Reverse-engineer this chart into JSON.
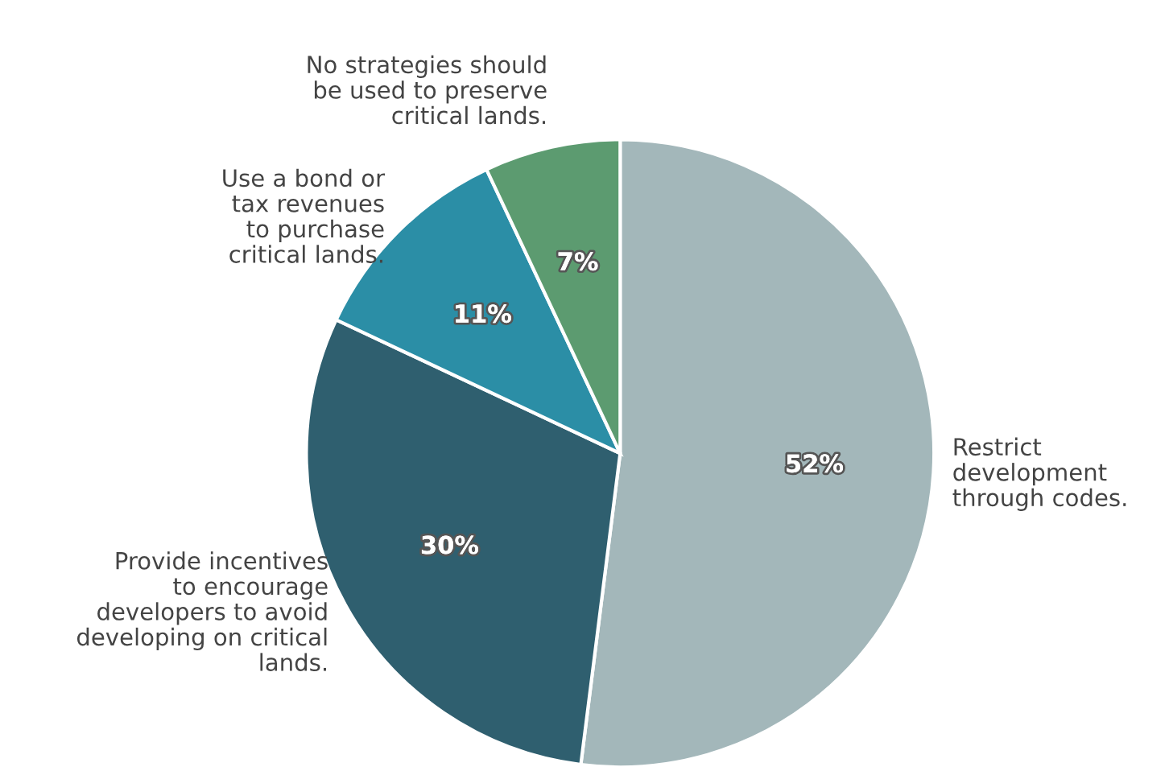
{
  "chart_data": {
    "type": "pie",
    "categories": [
      "Restrict\ndevelopment\nthrough codes.",
      "Provide incentives\nto encourage\ndevelopers to avoid\ndeveloping on critical\nlands.",
      "Use a bond or\ntax revenues\nto purchase\ncritical lands.",
      "No strategies should\nbe used to preserve\ncritical lands."
    ],
    "values": [
      52,
      30,
      11,
      7
    ],
    "value_labels": [
      "52%",
      "30%",
      "11%",
      "7%"
    ],
    "colors": [
      "#a3b7ba",
      "#2f5f6f",
      "#2b8ea6",
      "#5c9b70"
    ]
  }
}
